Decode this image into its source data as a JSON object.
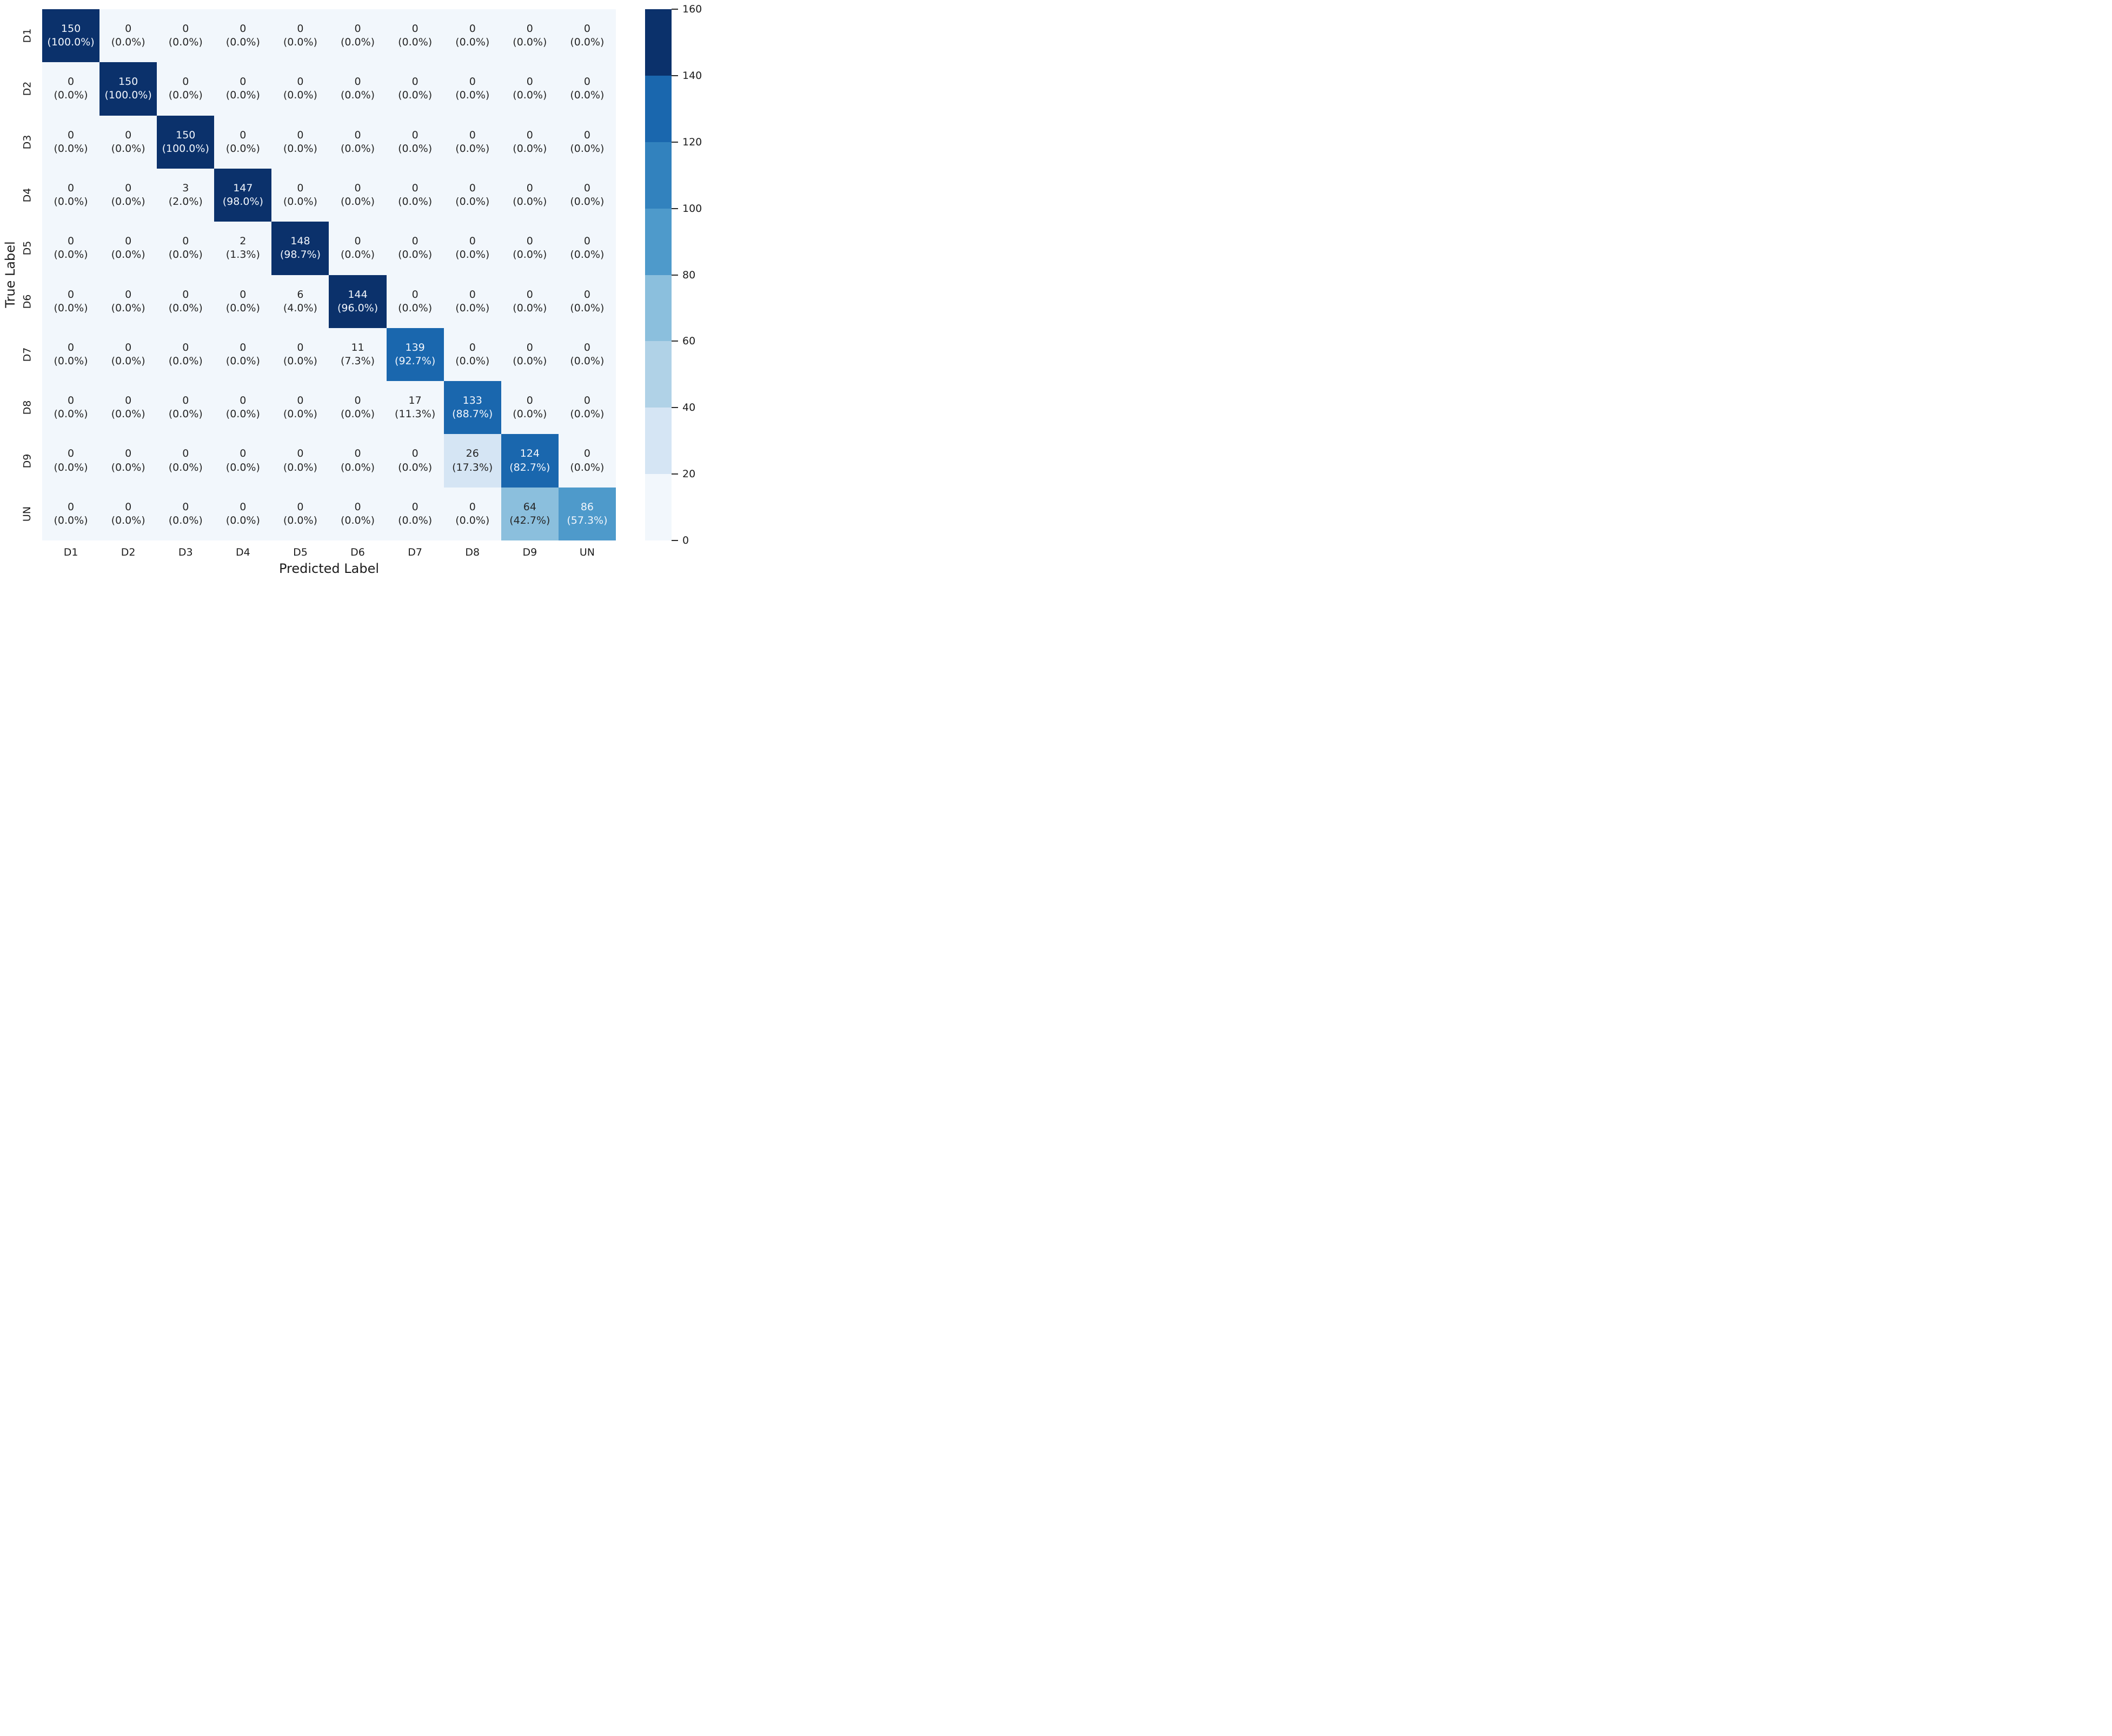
{
  "chart_data": {
    "type": "heatmap",
    "title": "",
    "xlabel": "Predicted Label",
    "ylabel": "True Label",
    "x_categories": [
      "D1",
      "D2",
      "D3",
      "D4",
      "D5",
      "D6",
      "D7",
      "D8",
      "D9",
      "UN"
    ],
    "y_categories": [
      "D1",
      "D2",
      "D3",
      "D4",
      "D5",
      "D6",
      "D7",
      "D8",
      "D9",
      "UN"
    ],
    "rows": [
      {
        "label": "D1",
        "counts": [
          150,
          0,
          0,
          0,
          0,
          0,
          0,
          0,
          0,
          0
        ],
        "percents": [
          "(100.0%)",
          "(0.0%)",
          "(0.0%)",
          "(0.0%)",
          "(0.0%)",
          "(0.0%)",
          "(0.0%)",
          "(0.0%)",
          "(0.0%)",
          "(0.0%)"
        ]
      },
      {
        "label": "D2",
        "counts": [
          0,
          150,
          0,
          0,
          0,
          0,
          0,
          0,
          0,
          0
        ],
        "percents": [
          "(0.0%)",
          "(100.0%)",
          "(0.0%)",
          "(0.0%)",
          "(0.0%)",
          "(0.0%)",
          "(0.0%)",
          "(0.0%)",
          "(0.0%)",
          "(0.0%)"
        ]
      },
      {
        "label": "D3",
        "counts": [
          0,
          0,
          150,
          0,
          0,
          0,
          0,
          0,
          0,
          0
        ],
        "percents": [
          "(0.0%)",
          "(0.0%)",
          "(100.0%)",
          "(0.0%)",
          "(0.0%)",
          "(0.0%)",
          "(0.0%)",
          "(0.0%)",
          "(0.0%)",
          "(0.0%)"
        ]
      },
      {
        "label": "D4",
        "counts": [
          0,
          0,
          3,
          147,
          0,
          0,
          0,
          0,
          0,
          0
        ],
        "percents": [
          "(0.0%)",
          "(0.0%)",
          "(2.0%)",
          "(98.0%)",
          "(0.0%)",
          "(0.0%)",
          "(0.0%)",
          "(0.0%)",
          "(0.0%)",
          "(0.0%)"
        ]
      },
      {
        "label": "D5",
        "counts": [
          0,
          0,
          0,
          2,
          148,
          0,
          0,
          0,
          0,
          0
        ],
        "percents": [
          "(0.0%)",
          "(0.0%)",
          "(0.0%)",
          "(1.3%)",
          "(98.7%)",
          "(0.0%)",
          "(0.0%)",
          "(0.0%)",
          "(0.0%)",
          "(0.0%)"
        ]
      },
      {
        "label": "D6",
        "counts": [
          0,
          0,
          0,
          0,
          6,
          144,
          0,
          0,
          0,
          0
        ],
        "percents": [
          "(0.0%)",
          "(0.0%)",
          "(0.0%)",
          "(0.0%)",
          "(4.0%)",
          "(96.0%)",
          "(0.0%)",
          "(0.0%)",
          "(0.0%)",
          "(0.0%)"
        ]
      },
      {
        "label": "D7",
        "counts": [
          0,
          0,
          0,
          0,
          0,
          11,
          139,
          0,
          0,
          0
        ],
        "percents": [
          "(0.0%)",
          "(0.0%)",
          "(0.0%)",
          "(0.0%)",
          "(0.0%)",
          "(7.3%)",
          "(92.7%)",
          "(0.0%)",
          "(0.0%)",
          "(0.0%)"
        ]
      },
      {
        "label": "D8",
        "counts": [
          0,
          0,
          0,
          0,
          0,
          0,
          17,
          133,
          0,
          0
        ],
        "percents": [
          "(0.0%)",
          "(0.0%)",
          "(0.0%)",
          "(0.0%)",
          "(0.0%)",
          "(0.0%)",
          "(11.3%)",
          "(88.7%)",
          "(0.0%)",
          "(0.0%)"
        ]
      },
      {
        "label": "D9",
        "counts": [
          0,
          0,
          0,
          0,
          0,
          0,
          0,
          26,
          124,
          0
        ],
        "percents": [
          "(0.0%)",
          "(0.0%)",
          "(0.0%)",
          "(0.0%)",
          "(0.0%)",
          "(0.0%)",
          "(0.0%)",
          "(17.3%)",
          "(82.7%)",
          "(0.0%)"
        ]
      },
      {
        "label": "UN",
        "counts": [
          0,
          0,
          0,
          0,
          0,
          0,
          0,
          0,
          64,
          86
        ],
        "percents": [
          "(0.0%)",
          "(0.0%)",
          "(0.0%)",
          "(0.0%)",
          "(0.0%)",
          "(0.0%)",
          "(0.0%)",
          "(0.0%)",
          "(42.7%)",
          "(57.3%)"
        ]
      }
    ],
    "colorbar": {
      "min": 0,
      "max": 160,
      "ticks": [
        0,
        20,
        40,
        60,
        80,
        100,
        120,
        140,
        160
      ],
      "segment_colors_low_to_high": [
        "#f2f7fc",
        "#d5e5f4",
        "#b0d2e7",
        "#8bbfdd",
        "#4e9acb",
        "#3282be",
        "#1a67ae",
        "#0b316b"
      ]
    },
    "colors": {
      "annotation_dark": "#262626",
      "annotation_light": "#f2f6fc",
      "axis_text": "#1c1c1c"
    },
    "layout": {
      "grid": "off",
      "legend": "colorbar-right",
      "cell_text_format": "count newline (percent)"
    }
  }
}
